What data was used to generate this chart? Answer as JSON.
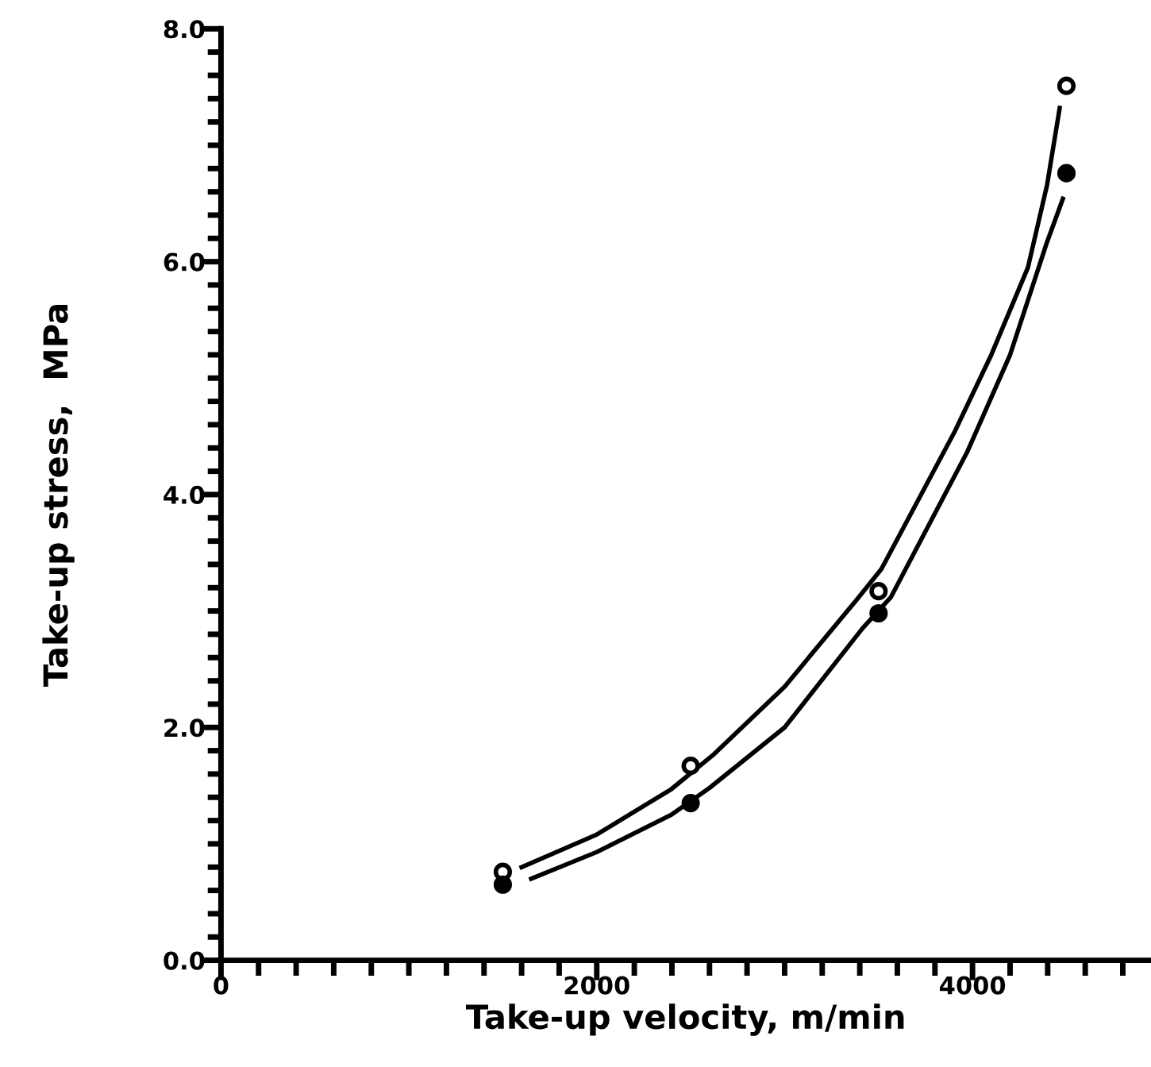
{
  "chart_data": {
    "type": "scatter",
    "xlabel": "Take-up velocity, m/min",
    "ylabel": "Take-up stress,  MPa",
    "xlim": [
      0,
      4950
    ],
    "ylim": [
      0,
      8.0
    ],
    "xticks": [
      0,
      {
        "value": 200,
        "label": null
      },
      {
        "value": 400,
        "label": null
      },
      {
        "value": 600,
        "label": null
      },
      {
        "value": 800,
        "label": null
      },
      {
        "value": 1000,
        "label": null
      },
      {
        "value": 1200,
        "label": null
      },
      {
        "value": 1400,
        "label": null
      },
      {
        "value": 1600,
        "label": null
      },
      {
        "value": 1800,
        "label": null
      },
      2000,
      {
        "value": 2200,
        "label": null
      },
      {
        "value": 2400,
        "label": null
      },
      {
        "value": 2600,
        "label": null
      },
      {
        "value": 2800,
        "label": null
      },
      {
        "value": 3000,
        "label": null
      },
      {
        "value": 3200,
        "label": null
      },
      {
        "value": 3400,
        "label": null
      },
      {
        "value": 3600,
        "label": null
      },
      {
        "value": 3800,
        "label": null
      },
      4000,
      {
        "value": 4200,
        "label": null
      },
      {
        "value": 4400,
        "label": null
      },
      {
        "value": 4600,
        "label": null
      },
      {
        "value": 4800,
        "label": null
      }
    ],
    "yticks": [
      {
        "value": 0,
        "label": "0.0"
      },
      {
        "value": 0.2,
        "label": null
      },
      {
        "value": 0.4,
        "label": null
      },
      {
        "value": 0.6,
        "label": null
      },
      {
        "value": 0.8,
        "label": null
      },
      {
        "value": 1.0,
        "label": null
      },
      {
        "value": 1.2,
        "label": null
      },
      {
        "value": 1.4,
        "label": null
      },
      {
        "value": 1.6,
        "label": null
      },
      {
        "value": 1.8,
        "label": null
      },
      {
        "value": 2,
        "label": "2.0"
      },
      {
        "value": 2.2,
        "label": null
      },
      {
        "value": 2.4,
        "label": null
      },
      {
        "value": 2.6,
        "label": null
      },
      {
        "value": 2.8,
        "label": null
      },
      {
        "value": 3.0,
        "label": null
      },
      {
        "value": 3.2,
        "label": null
      },
      {
        "value": 3.4,
        "label": null
      },
      {
        "value": 3.6,
        "label": null
      },
      {
        "value": 3.8,
        "label": null
      },
      {
        "value": 4,
        "label": "4.0"
      },
      {
        "value": 4.2,
        "label": null
      },
      {
        "value": 4.4,
        "label": null
      },
      {
        "value": 4.6,
        "label": null
      },
      {
        "value": 4.8,
        "label": null
      },
      {
        "value": 5.0,
        "label": null
      },
      {
        "value": 5.2,
        "label": null
      },
      {
        "value": 5.4,
        "label": null
      },
      {
        "value": 5.6,
        "label": null
      },
      {
        "value": 5.8,
        "label": null
      },
      {
        "value": 6,
        "label": "6.0"
      },
      {
        "value": 6.2,
        "label": null
      },
      {
        "value": 6.4,
        "label": null
      },
      {
        "value": 6.6,
        "label": null
      },
      {
        "value": 6.8,
        "label": null
      },
      {
        "value": 7.0,
        "label": null
      },
      {
        "value": 7.2,
        "label": null
      },
      {
        "value": 7.4,
        "label": null
      },
      {
        "value": 7.6,
        "label": null
      },
      {
        "value": 7.8,
        "label": null
      },
      {
        "value": 8,
        "label": "8.0"
      }
    ],
    "grid": false,
    "legend": false,
    "marker": "circle",
    "series": [
      {
        "color": "#000000",
        "x": [
          1500,
          2500,
          3500,
          4500
        ],
        "values": [
          0.76,
          1.67,
          3.17,
          7.51
        ]
      },
      {
        "color": "#000000",
        "x": [
          1500,
          2500,
          3500,
          4500
        ],
        "values": [
          0.65,
          1.35,
          2.98,
          6.76
        ]
      },
      {
        "type": "line",
        "color": "#000000",
        "marker": "none",
        "x": [
          1600,
          2000,
          2397,
          2617,
          3000,
          3380,
          3515,
          3905,
          4100,
          4295,
          4397,
          4464
        ],
        "values": [
          0.8,
          1.08,
          1.47,
          1.76,
          2.35,
          3.09,
          3.36,
          4.54,
          5.2,
          5.95,
          6.66,
          7.32
        ]
      },
      {
        "type": "line",
        "color": "#000000",
        "marker": "none",
        "x": [
          1651,
          2000,
          2397,
          2600,
          3000,
          3414,
          3566,
          3973,
          4200,
          4397,
          4481
        ],
        "values": [
          0.7,
          0.93,
          1.25,
          1.48,
          2.0,
          2.85,
          3.12,
          4.37,
          5.2,
          6.17,
          6.54
        ]
      }
    ]
  }
}
